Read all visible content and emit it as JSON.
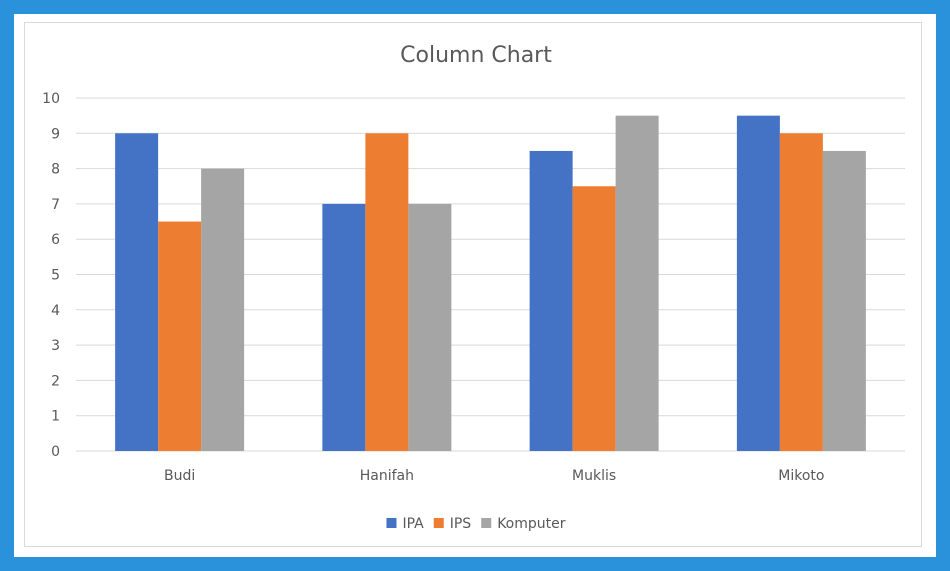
{
  "chart_data": {
    "type": "bar",
    "title": "Column Chart",
    "xlabel": "",
    "ylabel": "",
    "categories": [
      "Budi",
      "Hanifah",
      "Muklis",
      "Mikoto"
    ],
    "series": [
      {
        "name": "IPA",
        "color": "#4472c4",
        "values": [
          9,
          7,
          8.5,
          9.5
        ]
      },
      {
        "name": "IPS",
        "color": "#ed7d31",
        "values": [
          6.5,
          9,
          7.5,
          9
        ]
      },
      {
        "name": "Komputer",
        "color": "#a5a5a5",
        "values": [
          8,
          7,
          9.5,
          8.5
        ]
      }
    ],
    "ylim": [
      0,
      10
    ],
    "yticks": [
      0,
      1,
      2,
      3,
      4,
      5,
      6,
      7,
      8,
      9,
      10
    ],
    "grid": true,
    "legend_position": "bottom"
  },
  "colors": {
    "outer_border": "#2a92da",
    "background": "#ffffff",
    "gridline": "#d9d9d9",
    "text": "#595959"
  }
}
